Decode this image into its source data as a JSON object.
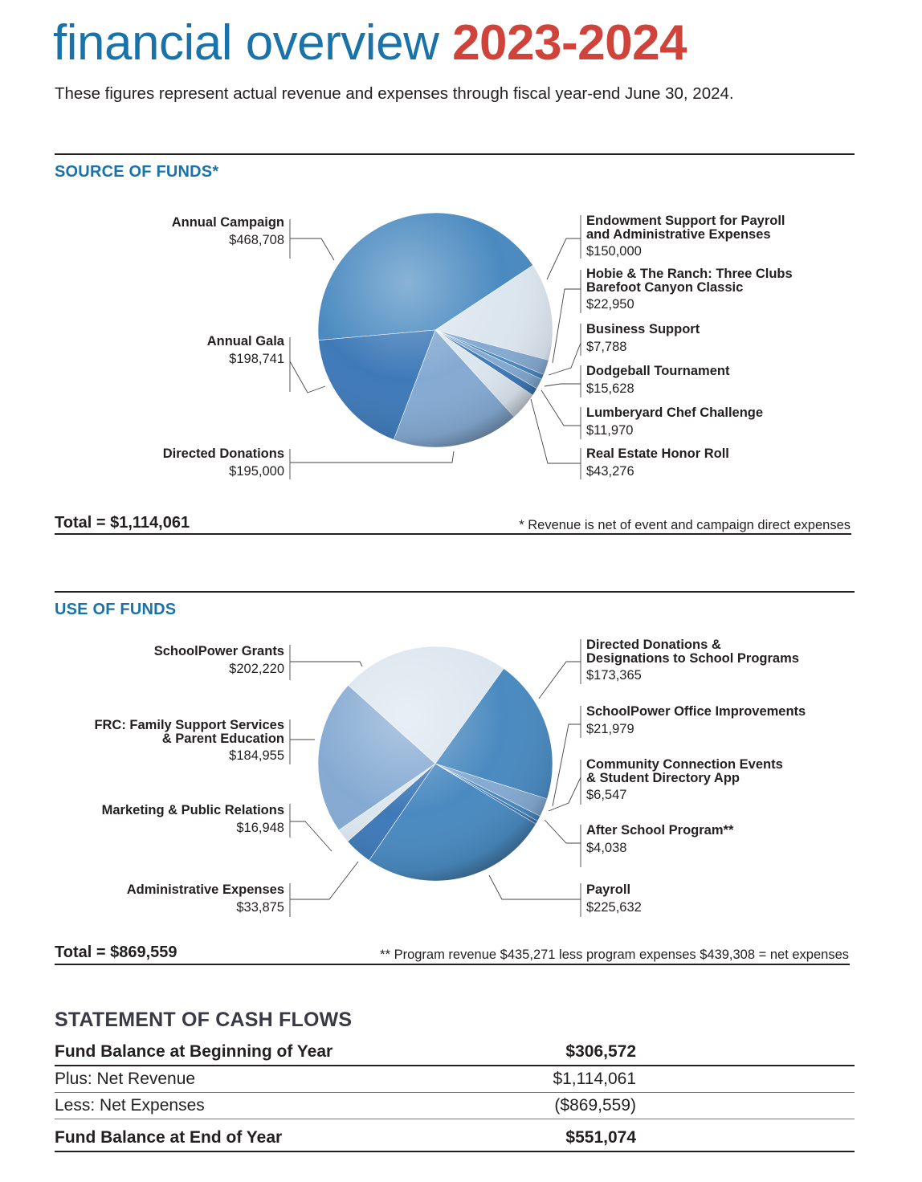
{
  "header": {
    "title_word": "financial overview",
    "title_year": "2023-2024",
    "subtitle": "These figures represent actual revenue and expenses through fiscal year-end June 30, 2024."
  },
  "colors": {
    "title_blue": "#1a73a8",
    "title_red": "#d0433a",
    "pie_dark": "#3f7ab8",
    "pie_mid": "#4a8ac0",
    "pie_light": "#85aad2",
    "pie_pale": "#dce6ef"
  },
  "chart_data": [
    {
      "type": "pie",
      "heading": "SOURCE OF FUNDS*",
      "total": "Total = $1,114,061",
      "footnote": "* Revenue is net of event and campaign direct expenses",
      "slices": [
        {
          "name": "Annual Campaign",
          "value": 468708,
          "label": "$468,708"
        },
        {
          "name": "Endowment Support for Payroll and Administrative Expenses",
          "value": 150000,
          "label": "$150,000"
        },
        {
          "name": "Hobie & The Ranch: Three Clubs Barefoot Canyon Classic",
          "value": 22950,
          "label": "$22,950"
        },
        {
          "name": "Business Support",
          "value": 7788,
          "label": "$7,788"
        },
        {
          "name": "Dodgeball Tournament",
          "value": 15628,
          "label": "$15,628"
        },
        {
          "name": "Lumberyard Chef Challenge",
          "value": 11970,
          "label": "$11,970"
        },
        {
          "name": "Real Estate Honor Roll",
          "value": 43276,
          "label": "$43,276"
        },
        {
          "name": "Directed Donations",
          "value": 195000,
          "label": "$195,000"
        },
        {
          "name": "Annual Gala",
          "value": 198741,
          "label": "$198,741"
        }
      ]
    },
    {
      "type": "pie",
      "heading": "USE OF FUNDS",
      "total": "Total = $869,559",
      "footnote": "** Program revenue $435,271 less program expenses $439,308 = net expenses",
      "slices": [
        {
          "name": "SchoolPower Grants",
          "value": 202220,
          "label": "$202,220"
        },
        {
          "name": "Directed Donations & Designations to School Programs",
          "value": 173365,
          "label": "$173,365"
        },
        {
          "name": "SchoolPower Office Improvements",
          "value": 21979,
          "label": "$21,979"
        },
        {
          "name": "Community Connection Events & Student Directory App",
          "value": 6547,
          "label": "$6,547"
        },
        {
          "name": "After School Program**",
          "value": 4038,
          "label": "$4,038"
        },
        {
          "name": "Payroll",
          "value": 225632,
          "label": "$225,632"
        },
        {
          "name": "Administrative Expenses",
          "value": 33875,
          "label": "$33,875"
        },
        {
          "name": "Marketing & Public Relations",
          "value": 16948,
          "label": "$16,948"
        },
        {
          "name": "FRC: Family Support Services & Parent Education",
          "value": 184955,
          "label": "$184,955"
        }
      ]
    }
  ],
  "source_labels": {
    "annual_campaign": {
      "name": "Annual Campaign",
      "value": "$468,708"
    },
    "annual_gala": {
      "name": "Annual Gala",
      "value": "$198,741"
    },
    "directed_donations": {
      "name": "Directed Donations",
      "value": "$195,000"
    },
    "endowment": {
      "name1": "Endowment Support for Payroll",
      "name2": "and Administrative Expenses",
      "value": "$150,000"
    },
    "hobie": {
      "name1": "Hobie & The Ranch: Three Clubs",
      "name2": "Barefoot Canyon Classic",
      "value": "$22,950"
    },
    "business": {
      "name": "Business Support",
      "value": "$7,788"
    },
    "dodgeball": {
      "name": "Dodgeball Tournament",
      "value": "$15,628"
    },
    "lumberyard": {
      "name": "Lumberyard Chef Challenge",
      "value": "$11,970"
    },
    "real_estate": {
      "name": "Real Estate Honor Roll",
      "value": "$43,276"
    }
  },
  "use_labels": {
    "grants": {
      "name": "SchoolPower Grants",
      "value": "$202,220"
    },
    "frc": {
      "name1": "FRC: Family Support Services",
      "name2": "& Parent Education",
      "value": "$184,955"
    },
    "marketing": {
      "name": "Marketing & Public Relations",
      "value": "$16,948"
    },
    "admin": {
      "name": "Administrative Expenses",
      "value": "$33,875"
    },
    "directed": {
      "name1": "Directed Donations &",
      "name2": "Designations to School Programs",
      "value": "$173,365"
    },
    "office": {
      "name": "SchoolPower Office Improvements",
      "value": "$21,979"
    },
    "community": {
      "name1": "Community Connection Events",
      "name2": "& Student Directory App",
      "value": "$6,547"
    },
    "after_school": {
      "name": "After School Program**",
      "value": "$4,038"
    },
    "payroll": {
      "name": "Payroll",
      "value": "$225,632"
    }
  },
  "cash_flows": {
    "heading": "STATEMENT OF CASH FLOWS",
    "rows": [
      {
        "label": "Fund Balance at Beginning of Year",
        "value": "$306,572"
      },
      {
        "label": "Plus: Net Revenue",
        "value": "$1,114,061"
      },
      {
        "label": "Less: Net Expenses",
        "value": "($869,559)"
      },
      {
        "label": "Fund Balance at End of Year",
        "value": "$551,074"
      }
    ]
  }
}
